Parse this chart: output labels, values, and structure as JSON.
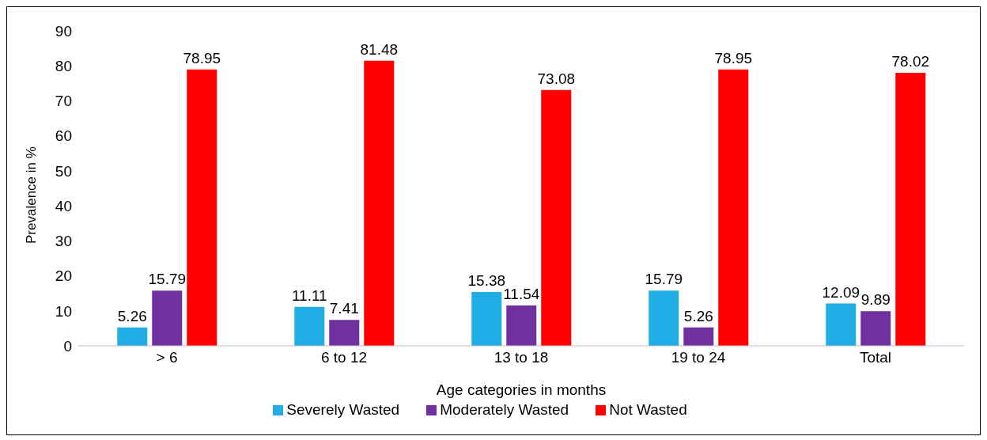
{
  "chart_data": {
    "type": "bar",
    "xlabel": "Age categories in months",
    "ylabel": "Prevalence in %",
    "categories": [
      "> 6",
      "6 to 12",
      "13 to 18",
      "19 to 24",
      "Total"
    ],
    "series": [
      {
        "name": "Severely Wasted",
        "color": "#21ade5",
        "values": [
          5.26,
          11.11,
          15.38,
          15.79,
          12.09
        ]
      },
      {
        "name": "Moderately Wasted",
        "color": "#7030a0",
        "values": [
          15.79,
          7.41,
          11.54,
          5.26,
          9.89
        ]
      },
      {
        "name": "Not Wasted",
        "color": "#ff0000",
        "values": [
          78.95,
          81.48,
          73.08,
          78.95,
          78.02
        ]
      }
    ],
    "ylim": [
      0,
      90
    ],
    "yticks": [
      0,
      10,
      20,
      30,
      40,
      50,
      60,
      70,
      80,
      90
    ],
    "grid": false,
    "legend": "bottom",
    "data_labels": true
  }
}
